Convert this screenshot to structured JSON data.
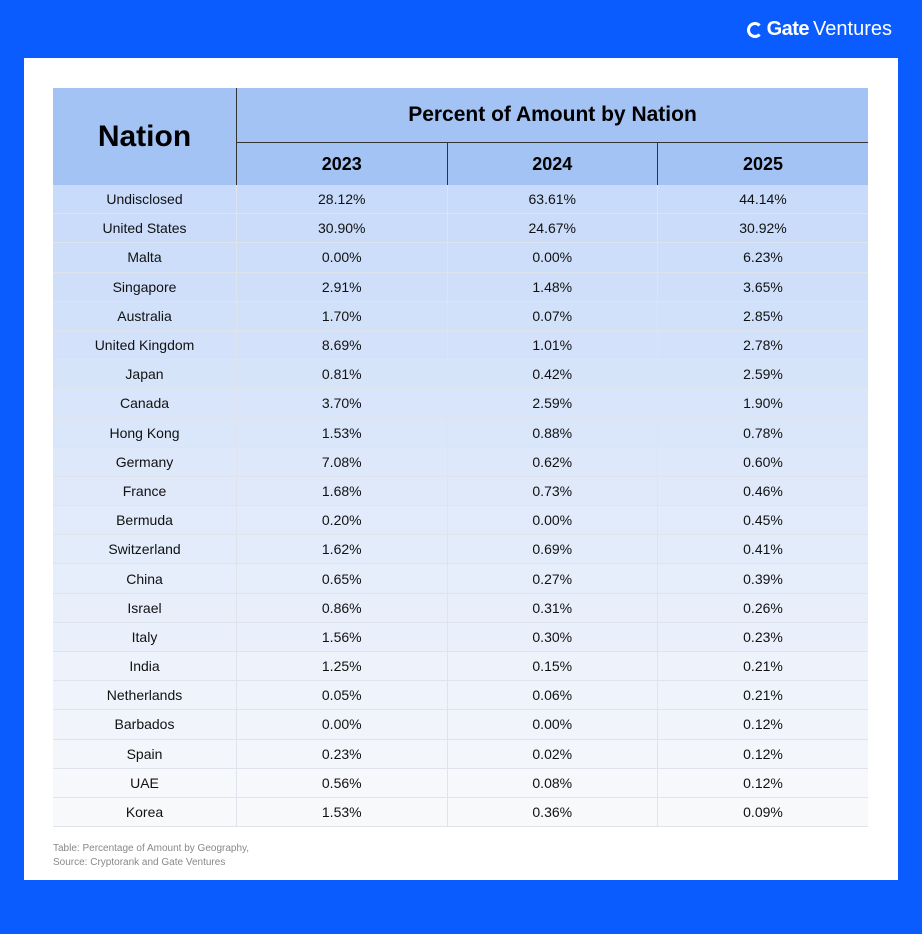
{
  "brand": {
    "logo_mark": "G",
    "logo_bold": "Gate",
    "logo_text": "Ventures"
  },
  "table": {
    "nation_header": "Nation",
    "title": "Percent of Amount by Nation",
    "years": [
      "2023",
      "2024",
      "2025"
    ],
    "rows": [
      [
        "Undisclosed",
        "28.12%",
        "63.61%",
        "44.14%"
      ],
      [
        "United States",
        "30.90%",
        "24.67%",
        "30.92%"
      ],
      [
        "Malta",
        "0.00%",
        "0.00%",
        "6.23%"
      ],
      [
        "Singapore",
        "2.91%",
        "1.48%",
        "3.65%"
      ],
      [
        "Australia",
        "1.70%",
        "0.07%",
        "2.85%"
      ],
      [
        "United Kingdom",
        "8.69%",
        "1.01%",
        "2.78%"
      ],
      [
        "Japan",
        "0.81%",
        "0.42%",
        "2.59%"
      ],
      [
        "Canada",
        "3.70%",
        "2.59%",
        "1.90%"
      ],
      [
        "Hong Kong",
        "1.53%",
        "0.88%",
        "0.78%"
      ],
      [
        "Germany",
        "7.08%",
        "0.62%",
        "0.60%"
      ],
      [
        "France",
        "1.68%",
        "0.73%",
        "0.46%"
      ],
      [
        "Bermuda",
        "0.20%",
        "0.00%",
        "0.45%"
      ],
      [
        "Switzerland",
        "1.62%",
        "0.69%",
        "0.41%"
      ],
      [
        "China",
        "0.65%",
        "0.27%",
        "0.39%"
      ],
      [
        "Israel",
        "0.86%",
        "0.31%",
        "0.26%"
      ],
      [
        "Italy",
        "1.56%",
        "0.30%",
        "0.23%"
      ],
      [
        "India",
        "1.25%",
        "0.15%",
        "0.21%"
      ],
      [
        "Netherlands",
        "0.05%",
        "0.06%",
        "0.21%"
      ],
      [
        "Barbados",
        "0.00%",
        "0.00%",
        "0.12%"
      ],
      [
        "Spain",
        "0.23%",
        "0.02%",
        "0.12%"
      ],
      [
        "UAE",
        "0.56%",
        "0.08%",
        "0.12%"
      ],
      [
        "Korea",
        "1.53%",
        "0.36%",
        "0.09%"
      ]
    ]
  },
  "footnote": {
    "line1": "Table: Percentage of Amount by Geography,",
    "line2": "Source: Cryptorank and Gate Ventures"
  },
  "colors": {
    "background": "#0a5cff",
    "header": "#a3c3f5",
    "row_top": "#c8dbfa",
    "row_bottom": "#f8f9fb"
  }
}
